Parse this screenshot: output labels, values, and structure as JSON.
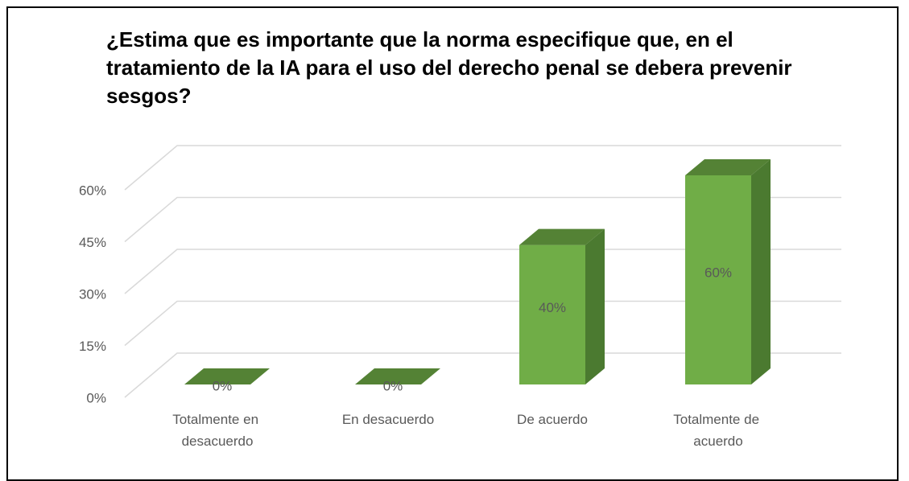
{
  "chart_data": {
    "type": "bar3d",
    "title": "¿Estima que es importante que la norma especifique que, en el tratamiento de la IA para el uso del derecho penal se debera prevenir sesgos?",
    "categories": [
      "Totalmente en desacuerdo",
      "En desacuerdo",
      "De acuerdo",
      "Totalmente de acuerdo"
    ],
    "values": [
      0,
      0,
      40,
      60
    ],
    "value_labels": [
      "0%",
      "0%",
      "40%",
      "60%"
    ],
    "color": "#70ad47",
    "ylim": [
      0,
      60
    ],
    "yticks": [
      {
        "value": 0,
        "label": "0%"
      },
      {
        "value": 15,
        "label": "15%"
      },
      {
        "value": 30,
        "label": "30%"
      },
      {
        "value": 45,
        "label": "45%"
      },
      {
        "value": 60,
        "label": "60%"
      }
    ],
    "grid": true
  }
}
